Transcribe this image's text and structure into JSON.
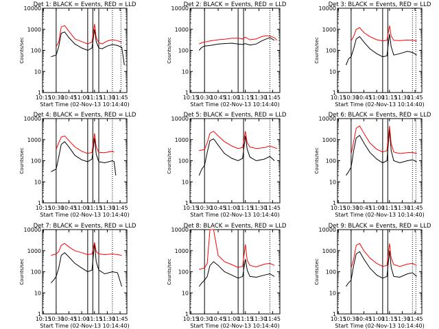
{
  "figure": {
    "shared_xlabel": "Start Time (02-Nov-13 10:14:40)",
    "shared_ylabel": "Counts/sec",
    "x_ticks": [
      "10:15",
      "10:30",
      "10:45",
      "11:00",
      "11:15",
      "11:30",
      "11:45"
    ],
    "y_ticks": [
      "1",
      "10",
      "100",
      "1000",
      "10000"
    ],
    "colors": {
      "events": "#000000",
      "lld": "#ff0000",
      "axes": "#000000",
      "background": "#ffffff"
    }
  },
  "chart_data": [
    {
      "type": "line",
      "title": "Det 1: BLACK = Events, RED = LLD",
      "xlabel": "Start Time (02-Nov-13 10:14:40)",
      "ylabel": "Counts/sec",
      "xlim": [
        "10:14",
        "11:53"
      ],
      "ylim": [
        1,
        10000
      ],
      "yscale": "log",
      "x": [
        "10:24",
        "10:27",
        "10:30",
        "10:33",
        "10:36",
        "10:40",
        "10:45",
        "10:52",
        "11:00",
        "11:07",
        "11:12",
        "11:15",
        "11:17",
        "11:20",
        "11:24",
        "11:30",
        "11:36",
        "11:42",
        "11:47",
        "11:50"
      ],
      "series": [
        {
          "name": "BLACK = Events",
          "values": [
            50,
            55,
            60,
            150,
            650,
            750,
            400,
            200,
            130,
            100,
            130,
            1000,
            260,
            130,
            120,
            160,
            190,
            170,
            140,
            20
          ]
        },
        {
          "name": "RED = LLD",
          "values": [
            null,
            null,
            150,
            250,
            1300,
            1500,
            800,
            350,
            260,
            200,
            250,
            1800,
            400,
            230,
            200,
            280,
            320,
            290,
            240,
            null
          ]
        }
      ],
      "vlines": [
        "10:30",
        "11:07",
        "11:13",
        "11:20"
      ],
      "dotted_vlines": [
        "11:36",
        "11:46"
      ]
    },
    {
      "type": "line",
      "title": "Det 2: BLACK = Events, RED = LLD",
      "xlabel": "Start Time (02-Nov-13 10:14:40)",
      "ylabel": "Counts/sec",
      "xlim": [
        "10:14",
        "11:53"
      ],
      "ylim": [
        1,
        10000
      ],
      "yscale": "log",
      "x": [
        "10:24",
        "10:27",
        "10:30",
        "10:36",
        "10:45",
        "10:52",
        "11:00",
        "11:07",
        "11:12",
        "11:15",
        "11:20",
        "11:27",
        "11:33",
        "11:38",
        "11:42",
        "11:47",
        "11:50"
      ],
      "series": [
        {
          "name": "BLACK = Events",
          "values": [
            100,
            140,
            160,
            170,
            200,
            210,
            220,
            200,
            190,
            210,
            180,
            200,
            280,
            350,
            400,
            300,
            null
          ]
        },
        {
          "name": "RED = LLD",
          "values": [
            200,
            230,
            250,
            280,
            320,
            340,
            380,
            380,
            350,
            420,
            320,
            350,
            450,
            500,
            480,
            400,
            300
          ]
        }
      ],
      "vlines": [
        "10:30",
        "11:07",
        "11:13"
      ],
      "dotted_vlines": [
        "11:42"
      ]
    },
    {
      "type": "line",
      "title": "Det 3: BLACK = Events, RED = LLD",
      "xlabel": "Start Time (02-Nov-13 10:14:40)",
      "ylabel": "Counts/sec",
      "xlim": [
        "10:14",
        "11:53"
      ],
      "ylim": [
        1,
        10000
      ],
      "yscale": "log",
      "x": [
        "10:24",
        "10:27",
        "10:30",
        "10:33",
        "10:36",
        "10:40",
        "10:45",
        "10:52",
        "11:00",
        "11:07",
        "11:12",
        "11:15",
        "11:17",
        "11:20",
        "11:27",
        "11:36",
        "11:42",
        "11:47"
      ],
      "series": [
        {
          "name": "BLACK = Events",
          "values": [
            20,
            40,
            50,
            120,
            350,
            450,
            250,
            120,
            70,
            50,
            55,
            600,
            150,
            60,
            70,
            90,
            80,
            60
          ]
        },
        {
          "name": "RED = LLD",
          "values": [
            null,
            null,
            280,
            450,
            1000,
            1200,
            700,
            450,
            320,
            280,
            300,
            1500,
            480,
            300,
            290,
            310,
            300,
            280
          ]
        }
      ],
      "vlines": [
        "10:30",
        "11:07",
        "11:13"
      ],
      "dotted_vlines": [
        "11:42",
        "11:46"
      ]
    },
    {
      "type": "line",
      "title": "Det 4: BLACK = Events, RED = LLD",
      "xlabel": "Start Time (02-Nov-13 10:14:40)",
      "ylabel": "Counts/sec",
      "xlim": [
        "10:14",
        "11:53"
      ],
      "ylim": [
        1,
        10000
      ],
      "yscale": "log",
      "x": [
        "10:24",
        "10:27",
        "10:30",
        "10:33",
        "10:36",
        "10:40",
        "10:45",
        "10:52",
        "11:00",
        "11:07",
        "11:12",
        "11:15",
        "11:17",
        "11:20",
        "11:27",
        "11:36",
        "11:38",
        "11:40"
      ],
      "series": [
        {
          "name": "BLACK = Events",
          "values": [
            30,
            35,
            40,
            150,
            600,
            800,
            450,
            180,
            110,
            90,
            120,
            1200,
            200,
            90,
            80,
            100,
            90,
            20
          ]
        },
        {
          "name": "RED = LLD",
          "values": [
            null,
            null,
            350,
            700,
            1300,
            1500,
            900,
            450,
            280,
            220,
            250,
            2000,
            450,
            250,
            240,
            280,
            250,
            null
          ]
        }
      ],
      "vlines": [
        "10:30",
        "11:07",
        "11:13",
        "11:20"
      ],
      "dotted_vlines": [
        "11:36"
      ]
    },
    {
      "type": "line",
      "title": "Det 5: BLACK = Events, RED = LLD",
      "xlabel": "Start Time (02-Nov-13 10:14:40)",
      "ylabel": "Counts/sec",
      "xlim": [
        "10:14",
        "11:53"
      ],
      "ylim": [
        1,
        10000
      ],
      "yscale": "log",
      "x": [
        "10:24",
        "10:27",
        "10:30",
        "10:33",
        "10:36",
        "10:40",
        "10:45",
        "10:52",
        "11:00",
        "11:07",
        "11:12",
        "11:15",
        "11:17",
        "11:20",
        "11:27",
        "11:36",
        "11:42",
        "11:47",
        "11:50"
      ],
      "series": [
        {
          "name": "BLACK = Events",
          "values": [
            20,
            40,
            60,
            250,
            900,
            1100,
            550,
            220,
            130,
            100,
            130,
            1500,
            350,
            150,
            100,
            120,
            160,
            100,
            null
          ]
        },
        {
          "name": "RED = LLD",
          "values": [
            300,
            320,
            350,
            700,
            2000,
            2500,
            1500,
            800,
            500,
            380,
            420,
            2500,
            700,
            450,
            380,
            420,
            500,
            420,
            380
          ]
        }
      ],
      "vlines": [
        "10:30",
        "11:13"
      ],
      "dotted_vlines": [
        "11:42"
      ]
    },
    {
      "type": "line",
      "title": "Det 6: BLACK = Events, RED = LLD",
      "xlabel": "Start Time (02-Nov-13 10:14:40)",
      "ylabel": "Counts/sec",
      "xlim": [
        "10:14",
        "11:53"
      ],
      "ylim": [
        1,
        10000
      ],
      "yscale": "log",
      "x": [
        "10:24",
        "10:27",
        "10:30",
        "10:33",
        "10:36",
        "10:40",
        "10:45",
        "10:52",
        "11:00",
        "11:07",
        "11:12",
        "11:15",
        "11:17",
        "11:20",
        "11:27",
        "11:36",
        "11:42",
        "11:47"
      ],
      "series": [
        {
          "name": "BLACK = Events",
          "values": [
            20,
            30,
            50,
            300,
            1200,
            1600,
            700,
            250,
            120,
            80,
            100,
            3000,
            300,
            100,
            80,
            100,
            110,
            90
          ]
        },
        {
          "name": "RED = LLD",
          "values": [
            null,
            null,
            200,
            800,
            3500,
            4500,
            2000,
            700,
            350,
            260,
            300,
            4500,
            650,
            260,
            220,
            240,
            250,
            220
          ]
        }
      ],
      "vlines": [
        "10:30",
        "11:07",
        "11:13"
      ],
      "dotted_vlines": [
        "11:42",
        "11:46"
      ]
    },
    {
      "type": "line",
      "title": "Det 7: BLACK = Events, RED = LLD",
      "xlabel": "Start Time (02-Nov-13 10:14:40)",
      "ylabel": "Counts/sec",
      "xlim": [
        "10:14",
        "11:53"
      ],
      "ylim": [
        1,
        10000
      ],
      "yscale": "log",
      "x": [
        "10:24",
        "10:27",
        "10:30",
        "10:33",
        "10:36",
        "10:40",
        "10:45",
        "10:52",
        "11:00",
        "11:07",
        "11:12",
        "11:15",
        "11:17",
        "11:20",
        "11:27",
        "11:36",
        "11:42",
        "11:47"
      ],
      "series": [
        {
          "name": "BLACK = Events",
          "values": [
            30,
            40,
            60,
            150,
            600,
            800,
            500,
            250,
            150,
            100,
            120,
            2200,
            300,
            120,
            80,
            100,
            90,
            20
          ]
        },
        {
          "name": "RED = LLD",
          "values": [
            600,
            650,
            700,
            900,
            1800,
            2200,
            1500,
            1000,
            800,
            650,
            700,
            2500,
            900,
            700,
            650,
            700,
            650,
            600
          ]
        }
      ],
      "vlines": [
        "10:30",
        "11:07",
        "11:13",
        "11:20"
      ],
      "dotted_vlines": [
        "11:36"
      ]
    },
    {
      "type": "line",
      "title": "Det 8: BLACK = Events, RED = LLD",
      "xlabel": "Start Time (02-Nov-13 10:14:40)",
      "ylabel": "Counts/sec",
      "xlim": [
        "10:14",
        "11:53"
      ],
      "ylim": [
        1,
        10000
      ],
      "yscale": "log",
      "x": [
        "10:24",
        "10:27",
        "10:30",
        "10:33",
        "10:36",
        "10:40",
        "10:45",
        "10:52",
        "11:00",
        "11:07",
        "11:12",
        "11:15",
        "11:17",
        "11:20",
        "11:27",
        "11:36",
        "11:42",
        "11:47"
      ],
      "series": [
        {
          "name": "BLACK = Events",
          "values": [
            20,
            30,
            40,
            60,
            200,
            300,
            200,
            100,
            70,
            50,
            60,
            400,
            120,
            60,
            55,
            70,
            80,
            60
          ]
        },
        {
          "name": "RED = LLD",
          "values": [
            130,
            140,
            150,
            250,
            10000,
            10000,
            600,
            300,
            220,
            160,
            180,
            2000,
            350,
            200,
            170,
            230,
            250,
            200
          ]
        }
      ],
      "vlines": [
        "10:30",
        "11:07",
        "11:13"
      ],
      "dotted_vlines": [
        "11:42"
      ]
    },
    {
      "type": "line",
      "title": "Det 9: BLACK = Events, RED = LLD",
      "xlabel": "Start Time (02-Nov-13 10:14:40)",
      "ylabel": "Counts/sec",
      "xlim": [
        "10:14",
        "11:53"
      ],
      "ylim": [
        1,
        10000
      ],
      "yscale": "log",
      "x": [
        "10:24",
        "10:27",
        "10:30",
        "10:33",
        "10:36",
        "10:40",
        "10:45",
        "10:52",
        "11:00",
        "11:07",
        "11:12",
        "11:15",
        "11:17",
        "11:20",
        "11:27",
        "11:36",
        "11:42",
        "11:47"
      ],
      "series": [
        {
          "name": "BLACK = Events",
          "values": [
            20,
            30,
            40,
            200,
            700,
            900,
            400,
            150,
            70,
            50,
            60,
            1000,
            160,
            60,
            55,
            80,
            90,
            60
          ]
        },
        {
          "name": "RED = LLD",
          "values": [
            null,
            null,
            150,
            400,
            1800,
            2200,
            1000,
            450,
            250,
            180,
            200,
            2200,
            450,
            220,
            180,
            230,
            250,
            200
          ]
        }
      ],
      "vlines": [
        "10:30",
        "11:07",
        "11:13"
      ],
      "dotted_vlines": [
        "11:42",
        "11:46"
      ]
    }
  ]
}
